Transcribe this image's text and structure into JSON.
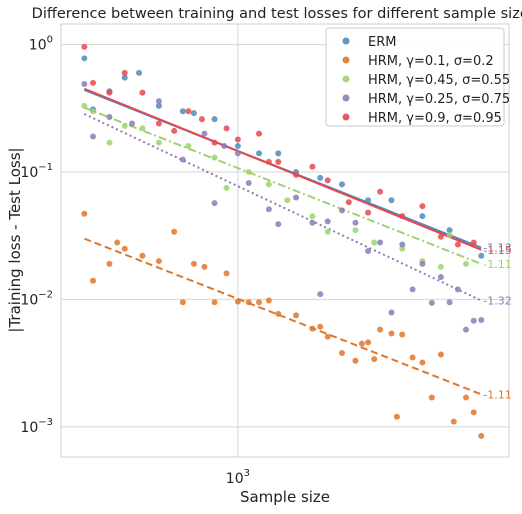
{
  "chart_data": {
    "type": "scatter",
    "title": "Difference between training and test losses for different sample sizes",
    "xlabel": "Sample size",
    "ylabel": "|Training loss - Test Loss|",
    "xscale": "log",
    "yscale": "log",
    "xlim": [
      450,
      3400
    ],
    "ylim": [
      0.00058,
      1.45
    ],
    "x_ticks": [
      {
        "value": 1000,
        "base": "10",
        "exp": "3"
      }
    ],
    "y_ticks": [
      {
        "value": 1,
        "base": "10",
        "exp": "0"
      },
      {
        "value": 0.1,
        "base": "10",
        "exp": "−1"
      },
      {
        "value": 0.01,
        "base": "10",
        "exp": "−2"
      },
      {
        "value": 0.001,
        "base": "10",
        "exp": "−3"
      }
    ],
    "grid": true,
    "legend_position": "top-right",
    "series": [
      {
        "name": "ERM",
        "color": "#4c8bbf",
        "line_style": "solid",
        "slope_label": "-1.13",
        "fit": [
          {
            "x": 500,
            "y": 0.44
          },
          {
            "x": 3000,
            "y": 0.0255
          }
        ],
        "points": [
          [
            500,
            0.78
          ],
          [
            520,
            0.31
          ],
          [
            560,
            0.43
          ],
          [
            600,
            0.55
          ],
          [
            640,
            0.6
          ],
          [
            700,
            0.33
          ],
          [
            780,
            0.3
          ],
          [
            820,
            0.29
          ],
          [
            900,
            0.26
          ],
          [
            1000,
            0.16
          ],
          [
            1100,
            0.14
          ],
          [
            1200,
            0.14
          ],
          [
            1300,
            0.1
          ],
          [
            1450,
            0.09
          ],
          [
            1600,
            0.08
          ],
          [
            1800,
            0.06
          ],
          [
            2000,
            0.06
          ],
          [
            2300,
            0.045
          ],
          [
            2600,
            0.035
          ],
          [
            3000,
            0.022
          ]
        ]
      },
      {
        "name": "HRM, γ=0.1, σ=0.2",
        "color": "#e0762a",
        "line_style": "dashed",
        "slope_label": "-1.11",
        "fit": [
          {
            "x": 500,
            "y": 0.03
          },
          {
            "x": 3000,
            "y": 0.0018
          }
        ],
        "points": [
          [
            500,
            0.047
          ],
          [
            520,
            0.014
          ],
          [
            560,
            0.019
          ],
          [
            580,
            0.028
          ],
          [
            600,
            0.025
          ],
          [
            650,
            0.022
          ],
          [
            700,
            0.02
          ],
          [
            750,
            0.034
          ],
          [
            780,
            0.0095
          ],
          [
            820,
            0.019
          ],
          [
            860,
            0.018
          ],
          [
            900,
            0.0095
          ],
          [
            950,
            0.016
          ],
          [
            1000,
            0.0096
          ],
          [
            1050,
            0.0095
          ],
          [
            1100,
            0.0095
          ],
          [
            1150,
            0.0098
          ],
          [
            1200,
            0.0077
          ],
          [
            1300,
            0.0075
          ],
          [
            1400,
            0.0059
          ],
          [
            1450,
            0.0061
          ],
          [
            1500,
            0.0051
          ],
          [
            1600,
            0.0038
          ],
          [
            1700,
            0.0033
          ],
          [
            1750,
            0.0045
          ],
          [
            1800,
            0.0046
          ],
          [
            1850,
            0.0034
          ],
          [
            1900,
            0.0058
          ],
          [
            2000,
            0.0054
          ],
          [
            2050,
            0.0012
          ],
          [
            2100,
            0.0053
          ],
          [
            2200,
            0.0035
          ],
          [
            2300,
            0.0032
          ],
          [
            2400,
            0.0017
          ],
          [
            2500,
            0.0037
          ],
          [
            2650,
            0.0011
          ],
          [
            2800,
            0.0017
          ],
          [
            2900,
            0.0013
          ],
          [
            3000,
            0.00085
          ]
        ]
      },
      {
        "name": "HRM, γ=0.45, σ=0.55",
        "color": "#9dd36e",
        "line_style": "dashdot",
        "slope_label": "-1.11",
        "fit": [
          {
            "x": 500,
            "y": 0.32
          },
          {
            "x": 3000,
            "y": 0.019
          }
        ],
        "points": [
          [
            500,
            0.33
          ],
          [
            520,
            0.3
          ],
          [
            560,
            0.17
          ],
          [
            600,
            0.23
          ],
          [
            650,
            0.22
          ],
          [
            700,
            0.17
          ],
          [
            800,
            0.16
          ],
          [
            900,
            0.13
          ],
          [
            950,
            0.075
          ],
          [
            1050,
            0.1
          ],
          [
            1150,
            0.08
          ],
          [
            1250,
            0.06
          ],
          [
            1400,
            0.045
          ],
          [
            1500,
            0.034
          ],
          [
            1700,
            0.035
          ],
          [
            1850,
            0.028
          ],
          [
            2100,
            0.025
          ],
          [
            2300,
            0.02
          ],
          [
            2500,
            0.018
          ],
          [
            2600,
            0.032
          ],
          [
            2800,
            0.019
          ]
        ]
      },
      {
        "name": "HRM, γ=0.25, σ=0.75",
        "color": "#8a7db5",
        "line_style": "dotted",
        "slope_label": "-1.32",
        "fit": [
          {
            "x": 500,
            "y": 0.285
          },
          {
            "x": 3000,
            "y": 0.0098
          }
        ],
        "points": [
          [
            500,
            0.49
          ],
          [
            520,
            0.19
          ],
          [
            560,
            0.27
          ],
          [
            620,
            0.24
          ],
          [
            700,
            0.36
          ],
          [
            780,
            0.125
          ],
          [
            860,
            0.2
          ],
          [
            900,
            0.057
          ],
          [
            940,
            0.16
          ],
          [
            1000,
            0.14
          ],
          [
            1050,
            0.082
          ],
          [
            1150,
            0.051
          ],
          [
            1200,
            0.039
          ],
          [
            1300,
            0.063
          ],
          [
            1400,
            0.04
          ],
          [
            1450,
            0.011
          ],
          [
            1500,
            0.041
          ],
          [
            1600,
            0.05
          ],
          [
            1700,
            0.04
          ],
          [
            1800,
            0.024
          ],
          [
            1900,
            0.028
          ],
          [
            2000,
            0.0079
          ],
          [
            2100,
            0.027
          ],
          [
            2200,
            0.012
          ],
          [
            2300,
            0.019
          ],
          [
            2400,
            0.0094
          ],
          [
            2500,
            0.015
          ],
          [
            2600,
            0.0095
          ],
          [
            2700,
            0.012
          ],
          [
            2800,
            0.0058
          ],
          [
            2900,
            0.0068
          ],
          [
            3000,
            0.0069
          ]
        ]
      },
      {
        "name": "HRM, γ=0.9, σ=0.95",
        "color": "#e5484d",
        "line_style": "solid",
        "slope_label": "-1.15",
        "fit": [
          {
            "x": 500,
            "y": 0.45
          },
          {
            "x": 3000,
            "y": 0.0245
          }
        ],
        "points": [
          [
            500,
            0.96
          ],
          [
            520,
            0.5
          ],
          [
            560,
            0.42
          ],
          [
            600,
            0.6
          ],
          [
            650,
            0.42
          ],
          [
            700,
            0.24
          ],
          [
            750,
            0.21
          ],
          [
            800,
            0.3
          ],
          [
            850,
            0.26
          ],
          [
            900,
            0.17
          ],
          [
            950,
            0.22
          ],
          [
            1000,
            0.18
          ],
          [
            1100,
            0.2
          ],
          [
            1150,
            0.12
          ],
          [
            1200,
            0.12
          ],
          [
            1300,
            0.095
          ],
          [
            1400,
            0.11
          ],
          [
            1500,
            0.086
          ],
          [
            1650,
            0.058
          ],
          [
            1800,
            0.048
          ],
          [
            1900,
            0.07
          ],
          [
            2100,
            0.045
          ],
          [
            2300,
            0.054
          ],
          [
            2500,
            0.031
          ],
          [
            2700,
            0.027
          ],
          [
            2900,
            0.028
          ]
        ]
      }
    ]
  }
}
